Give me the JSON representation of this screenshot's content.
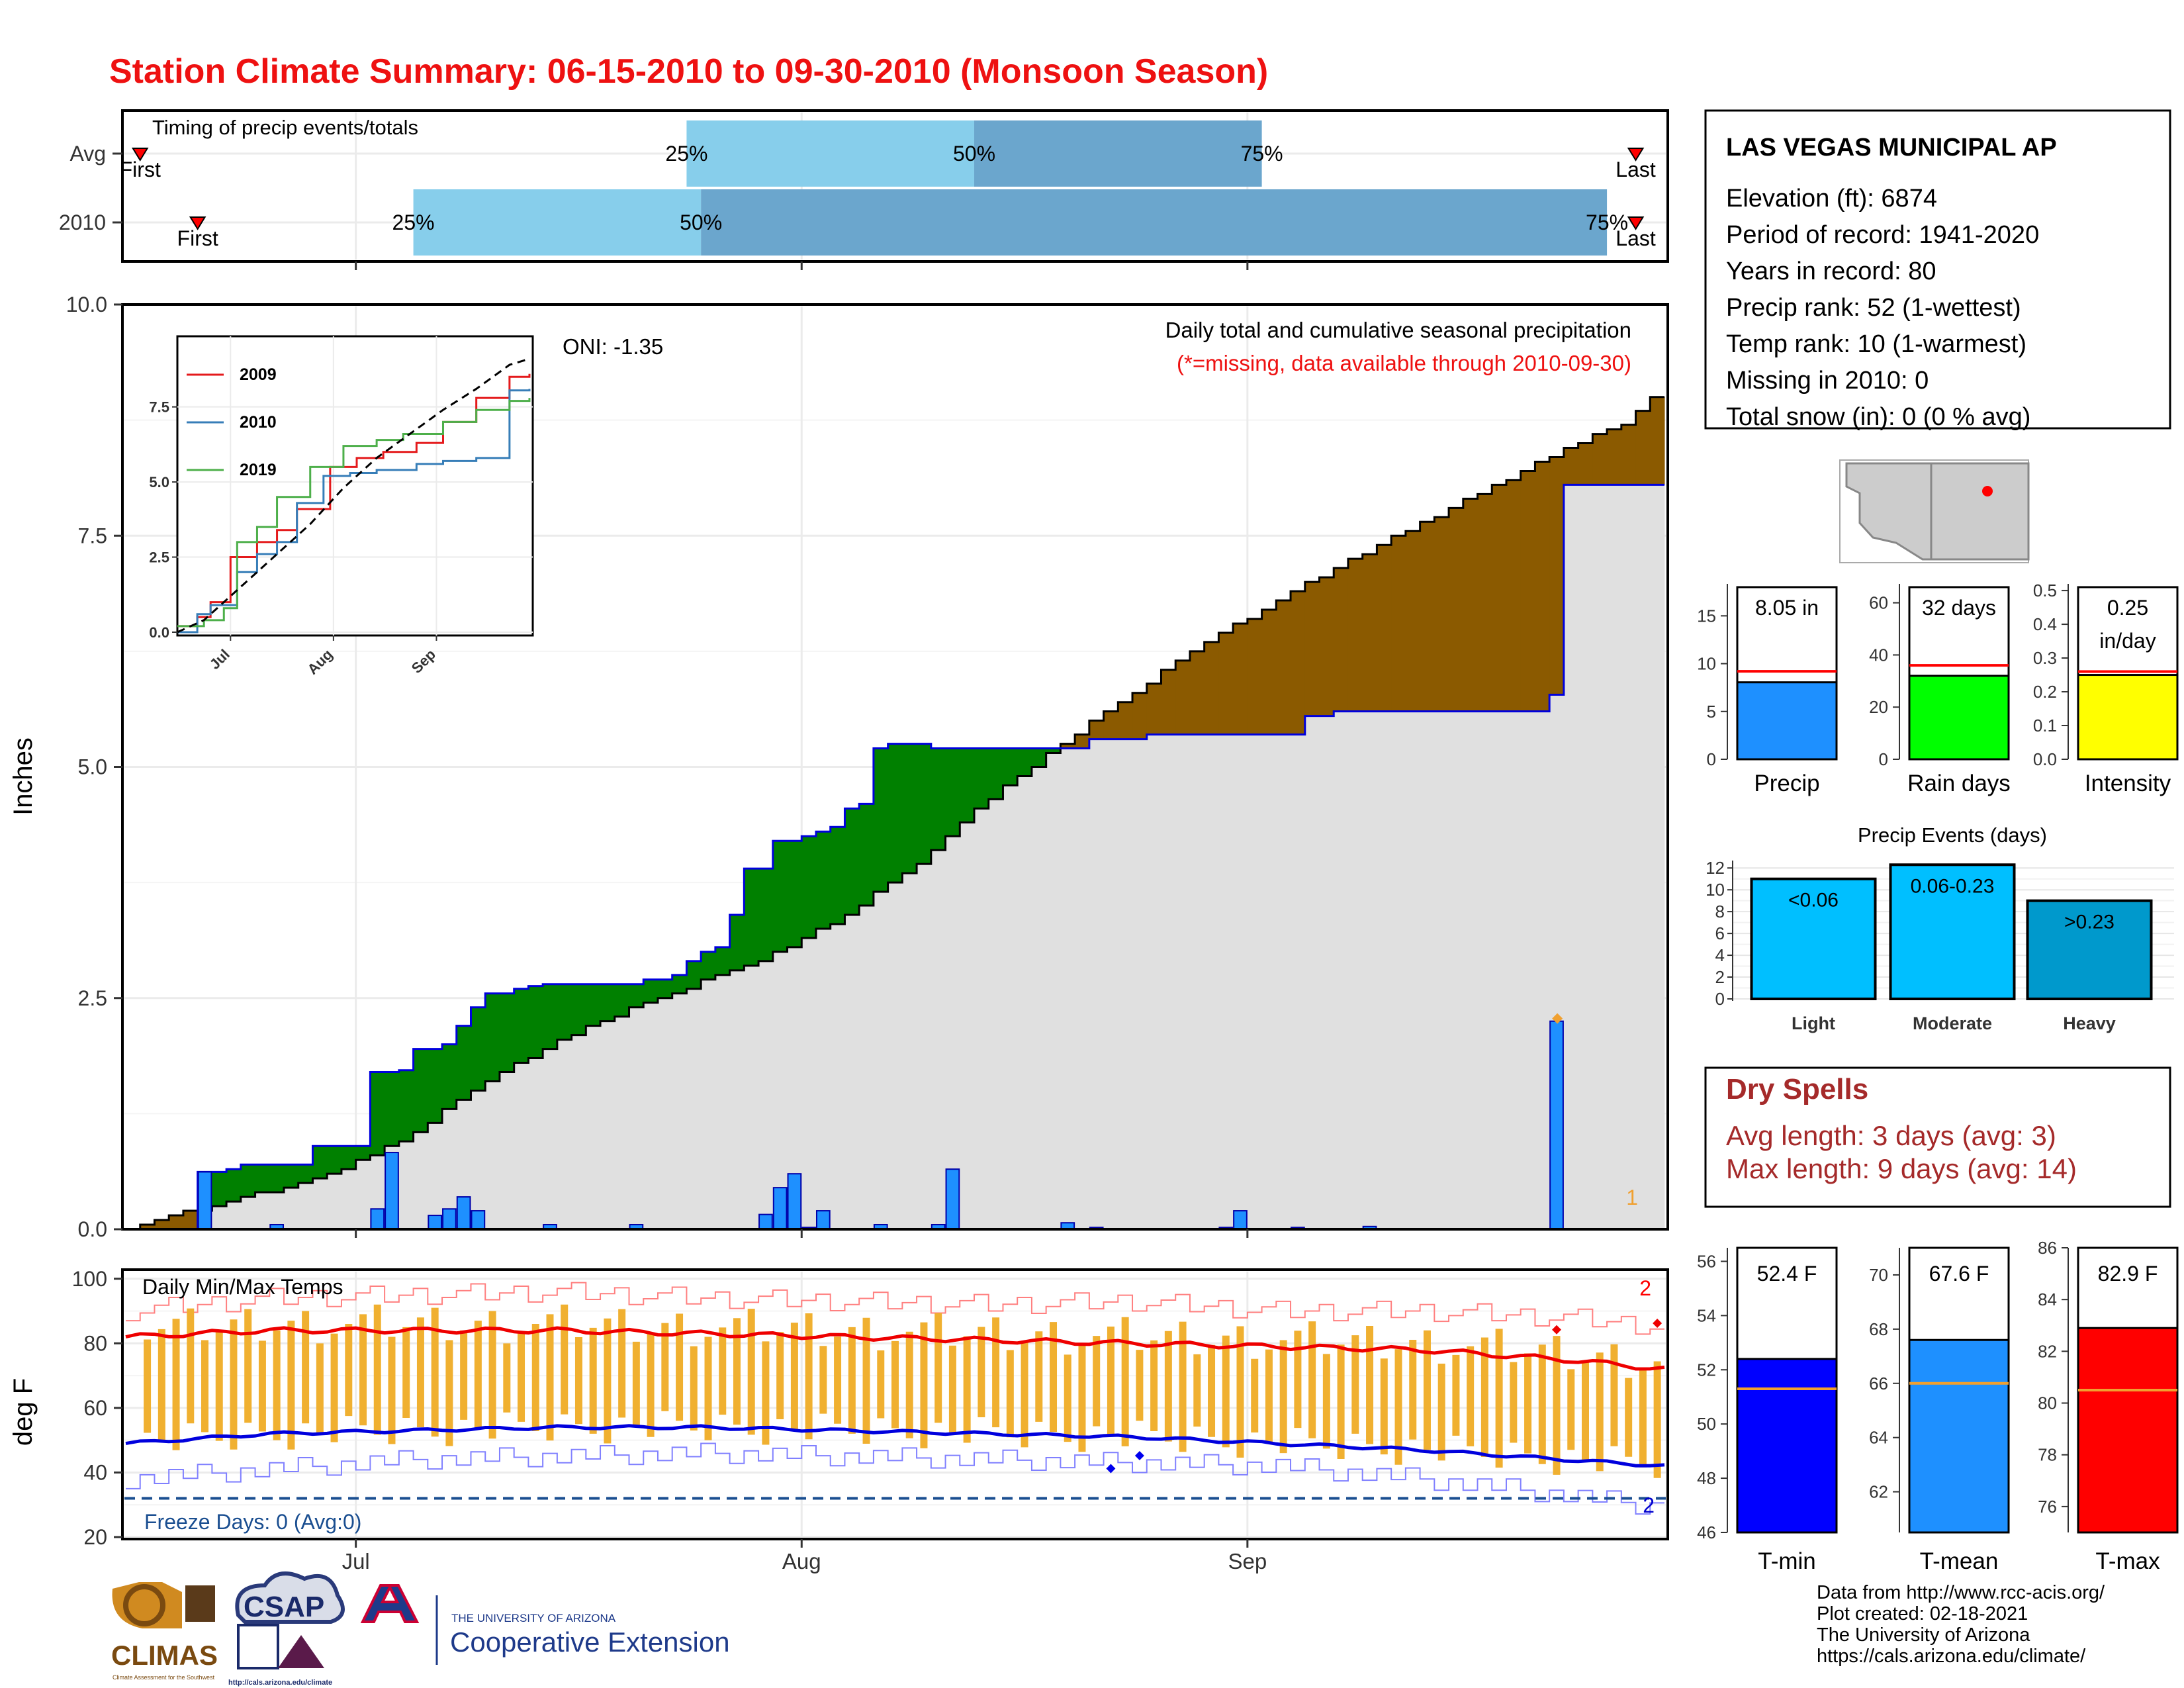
{
  "title": "Station Climate Summary: 06-15-2010 to 09-30-2010 (Monsoon Season)",
  "colors": {
    "title": "#ee1111",
    "q1": "#87ceeb",
    "q2": "#6ba6cd",
    "deficit": "#8b5a00",
    "surplus": "#008000",
    "cum_fill": "#e0e0e0",
    "daily_bar": "#1e90ff",
    "temp_bar": "#f0b030",
    "dry_title": "#a52a2a"
  },
  "timing": {
    "label": "Timing of precip events/totals",
    "rows": [
      {
        "name": "Avg",
        "first_label": "First",
        "last_label": "Last",
        "first_date": "06-16",
        "last_date": "09-28",
        "q25": "25%",
        "q50": "50%",
        "q75": "75%",
        "q25_date": "07-24",
        "q50_date": "08-13",
        "q75_date": "09-02"
      },
      {
        "name": "2010",
        "first_label": "First",
        "last_label": "Last",
        "first_date": "06-20",
        "last_date": "09-28",
        "q25": "25%",
        "q50": "50%",
        "q75": "75%",
        "q25_date": "07-05",
        "q50_date": "07-25",
        "q75_date": "09-26"
      }
    ],
    "x_ticks": [
      "Jul",
      "Aug",
      "Sep"
    ]
  },
  "main_chart": {
    "type": "area",
    "ylabel": "Inches",
    "y_ticks": [
      "0.0",
      "2.5",
      "5.0",
      "7.5",
      "10.0"
    ],
    "ylim": [
      0,
      10
    ],
    "x_ticks": [
      "Jul",
      "Aug",
      "Sep"
    ],
    "xlim": [
      "06-15",
      "09-30"
    ],
    "annotation_oni": "ONI: -1.35",
    "annotation_title": "Daily total and cumulative seasonal precipitation",
    "annotation_missing": "(*=missing, data available through 2010-09-30)",
    "corner_label": "1",
    "chart_data": {
      "type": "area",
      "series": [
        {
          "name": "avg_cumulative",
          "x": [
            "06-15",
            "06-20",
            "06-25",
            "06-30",
            "07-05",
            "07-10",
            "07-15",
            "07-20",
            "07-25",
            "07-30",
            "08-04",
            "08-09",
            "08-14",
            "08-19",
            "08-24",
            "08-29",
            "09-03",
            "09-08",
            "09-13",
            "09-18",
            "09-23",
            "09-28",
            "09-30"
          ],
          "y": [
            0.0,
            0.2,
            0.4,
            0.62,
            1.0,
            1.55,
            2.0,
            2.35,
            2.65,
            2.95,
            3.35,
            3.9,
            4.6,
            5.2,
            5.75,
            6.3,
            6.75,
            7.2,
            7.6,
            8.0,
            8.4,
            8.75,
            9.05
          ]
        },
        {
          "name": "2010_cumulative",
          "x": [
            "06-15",
            "06-19",
            "06-20",
            "06-22",
            "06-23",
            "06-27",
            "06-28",
            "07-01",
            "07-02",
            "07-04",
            "07-05",
            "07-07",
            "07-08",
            "07-09",
            "07-10",
            "07-12",
            "07-13",
            "07-14",
            "07-20",
            "07-21",
            "07-23",
            "07-24",
            "07-25",
            "07-26",
            "07-27",
            "07-28",
            "07-30",
            "08-01",
            "08-02",
            "08-03",
            "08-04",
            "08-05",
            "08-06",
            "08-07",
            "08-10",
            "08-21",
            "08-25",
            "09-05",
            "09-07",
            "09-22",
            "09-23",
            "09-30"
          ],
          "y": [
            0.0,
            0.0,
            0.62,
            0.65,
            0.7,
            0.7,
            0.9,
            0.9,
            1.7,
            1.72,
            1.95,
            2.0,
            2.2,
            2.4,
            2.55,
            2.6,
            2.63,
            2.65,
            2.65,
            2.7,
            2.75,
            2.9,
            3.0,
            3.05,
            3.4,
            3.9,
            4.2,
            4.25,
            4.3,
            4.35,
            4.55,
            4.6,
            5.2,
            5.25,
            5.2,
            5.3,
            5.35,
            5.55,
            5.6,
            5.78,
            8.05,
            8.05
          ]
        },
        {
          "name": "2010_daily",
          "x": [
            "06-20",
            "06-25",
            "07-02",
            "07-03",
            "07-06",
            "07-07",
            "07-08",
            "07-09",
            "07-14",
            "07-20",
            "07-29",
            "07-30",
            "07-31",
            "08-01",
            "08-02",
            "08-06",
            "08-10",
            "08-11",
            "08-19",
            "08-21",
            "08-30",
            "08-31",
            "09-04",
            "09-09",
            "09-22"
          ],
          "y": [
            0.62,
            0.05,
            0.22,
            0.83,
            0.15,
            0.22,
            0.35,
            0.2,
            0.05,
            0.05,
            0.16,
            0.45,
            0.6,
            0.02,
            0.2,
            0.05,
            0.05,
            0.65,
            0.07,
            0.02,
            0.02,
            0.2,
            0.02,
            0.03,
            2.25
          ]
        }
      ]
    }
  },
  "inset_chart": {
    "type": "line",
    "y_ticks": [
      "0.0",
      "2.5",
      "5.0",
      "7.5"
    ],
    "x_ticks": [
      "Jul",
      "Aug",
      "Sep"
    ],
    "legend": [
      "2009",
      "2010",
      "2019"
    ],
    "legend_colors": [
      "#e41a1c",
      "#377eb8",
      "#4daf4a"
    ],
    "chart_data": {
      "type": "line",
      "series": [
        {
          "name": "2009",
          "x": [
            0,
            6,
            10,
            16,
            24,
            30,
            36,
            46,
            54,
            62,
            72,
            80,
            90,
            100,
            106
          ],
          "y": [
            0.2,
            0.5,
            1.0,
            2.5,
            3.0,
            3.4,
            4.1,
            5.5,
            5.8,
            6.0,
            6.3,
            7.0,
            7.8,
            8.5,
            8.6
          ]
        },
        {
          "name": "2010",
          "x": [
            0,
            6,
            10,
            18,
            24,
            30,
            36,
            44,
            52,
            60,
            72,
            80,
            90,
            98,
            100,
            106
          ],
          "y": [
            0.0,
            0.6,
            0.9,
            2.0,
            2.6,
            3.0,
            4.3,
            5.2,
            5.3,
            5.4,
            5.6,
            5.7,
            5.8,
            5.8,
            8.05,
            8.1
          ]
        },
        {
          "name": "2019",
          "x": [
            0,
            8,
            14,
            18,
            24,
            30,
            40,
            50,
            60,
            68,
            80,
            90,
            100,
            106
          ],
          "y": [
            0.2,
            0.4,
            0.8,
            3.0,
            3.5,
            4.5,
            5.5,
            6.2,
            6.4,
            6.6,
            7.0,
            7.4,
            7.7,
            7.8
          ]
        },
        {
          "name": "avg",
          "x": [
            0,
            8,
            14,
            20,
            30,
            40,
            50,
            60,
            70,
            80,
            90,
            100,
            106
          ],
          "y": [
            0.0,
            0.4,
            1.0,
            1.6,
            2.6,
            3.6,
            4.8,
            5.8,
            6.6,
            7.4,
            8.1,
            8.9,
            9.1
          ]
        }
      ]
    }
  },
  "temp_chart": {
    "type": "bar",
    "ylabel": "deg F",
    "y_ticks": [
      "20",
      "40",
      "60",
      "80",
      "100"
    ],
    "ylim": [
      20,
      100
    ],
    "x_ticks": [
      "Jul",
      "Aug",
      "Sep"
    ],
    "title": "Daily Min/Max Temps",
    "freeze_label": "Freeze Days: 0 (Avg:0)",
    "freeze_line_value": 32,
    "corner_max": "2",
    "corner_min": "2",
    "chart_data": {
      "type": "bar",
      "avg_max": {
        "x": [
          0,
          10,
          20,
          30,
          40,
          50,
          60,
          70,
          80,
          90,
          100,
          107
        ],
        "y": [
          82,
          84,
          84,
          84,
          83,
          82,
          81,
          80,
          79,
          78,
          75,
          72
        ]
      },
      "avg_min": {
        "x": [
          0,
          10,
          20,
          30,
          40,
          50,
          60,
          70,
          80,
          90,
          100,
          107
        ],
        "y": [
          49,
          52,
          53,
          54,
          54,
          53,
          52,
          51,
          49,
          47,
          44,
          42
        ]
      },
      "record_max": {
        "x": [
          0,
          10,
          20,
          30,
          40,
          50,
          60,
          70,
          80,
          90,
          100,
          107
        ],
        "y": [
          90,
          94,
          95,
          96,
          94,
          93,
          92,
          93,
          90,
          90,
          88,
          85
        ]
      },
      "record_min": {
        "x": [
          0,
          10,
          20,
          30,
          40,
          50,
          60,
          70,
          80,
          90,
          100,
          107
        ],
        "y": [
          38,
          41,
          44,
          45,
          46,
          45,
          44,
          43,
          42,
          38,
          33,
          29
        ]
      }
    }
  },
  "station": {
    "name": "LAS VEGAS MUNICIPAL AP",
    "lines": [
      "Elevation (ft): 6874",
      "Period of record: 1941-2020",
      "Years in record: 80",
      "Precip rank: 52 (1-wettest)",
      "Temp rank: 10 (1-warmest)",
      "Missing in 2010: 0",
      "Total snow (in): 0 (0 % avg)"
    ]
  },
  "summary_bars": [
    {
      "label": "Precip",
      "value_text": "8.05 in",
      "value": 8.05,
      "avg": 9.2,
      "ymax": 18,
      "ticks": [
        "0",
        "5",
        "10",
        "15"
      ],
      "tick_vals": [
        0,
        5,
        10,
        15
      ],
      "color": "#1e90ff"
    },
    {
      "label": "Rain days",
      "value_text": "32 days",
      "value": 32,
      "avg": 36,
      "ymax": 66,
      "ticks": [
        "0",
        "20",
        "40",
        "60"
      ],
      "tick_vals": [
        0,
        20,
        40,
        60
      ],
      "color": "#00ff00"
    },
    {
      "label": "Intensity",
      "value_text": "0.25",
      "value_text2": "in/day",
      "value": 0.25,
      "avg": 0.26,
      "ymax": 0.51,
      "ticks": [
        "0.0",
        "0.1",
        "0.2",
        "0.3",
        "0.4",
        "0.5"
      ],
      "tick_vals": [
        0,
        0.1,
        0.2,
        0.3,
        0.4,
        0.5
      ],
      "color": "#ffff00"
    }
  ],
  "events": {
    "title": "Precip Events (days)",
    "y_ticks": [
      "0",
      "2",
      "4",
      "6",
      "8",
      "10",
      "12"
    ],
    "categories": [
      "Light",
      "Moderate",
      "Heavy"
    ],
    "bar_labels": [
      "<0.06",
      "0.06-0.23",
      ">0.23"
    ],
    "values": [
      11,
      12.3,
      9
    ],
    "colors": [
      "#00bfff",
      "#00bfff",
      "#0099cc"
    ],
    "ymax": 12.5
  },
  "dry_spells": {
    "title": "Dry Spells",
    "avg_line": "Avg length: 3 days (avg: 3)",
    "max_line": "Max length: 9 days (avg: 14)"
  },
  "temp_bars": [
    {
      "label": "T-min",
      "value_text": "52.4 F",
      "value": 52.4,
      "avg": 51.3,
      "ymin": 46,
      "ymax": 56.5,
      "ticks": [
        "46",
        "48",
        "50",
        "52",
        "54",
        "56"
      ],
      "tick_vals": [
        46,
        48,
        50,
        52,
        54,
        56
      ],
      "color": "#0000ff"
    },
    {
      "label": "T-mean",
      "value_text": "67.6 F",
      "value": 67.6,
      "avg": 66.0,
      "ymin": 60.5,
      "ymax": 71,
      "ticks": [
        "62",
        "64",
        "66",
        "68",
        "70"
      ],
      "tick_vals": [
        62,
        64,
        66,
        68,
        70
      ],
      "color": "#1e90ff"
    },
    {
      "label": "T-max",
      "value_text": "82.9 F",
      "value": 82.9,
      "avg": 80.5,
      "ymin": 75,
      "ymax": 86,
      "ticks": [
        "76",
        "78",
        "80",
        "82",
        "84",
        "86"
      ],
      "tick_vals": [
        76,
        78,
        80,
        82,
        84,
        86
      ],
      "color": "#ff0000"
    }
  ],
  "footer": [
    "Data from http://www.rcc-acis.org/",
    "Plot created: 02-18-2021",
    "The University of Arizona",
    "https://cals.arizona.edu/climate/"
  ],
  "logos": {
    "climas": "CLIMAS",
    "climas_sub": "Climate Assessment for the Southwest",
    "csap": "CSAP",
    "csap_url": "http://cals.arizona.edu/climate",
    "ua_small": "THE UNIVERSITY OF ARIZONA",
    "ua_big": "Cooperative Extension"
  }
}
